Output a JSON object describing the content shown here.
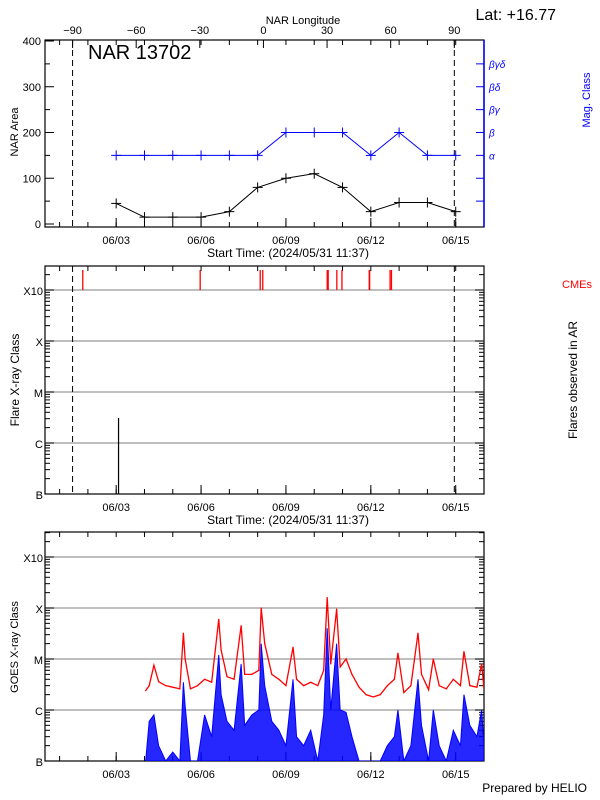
{
  "colors": {
    "area": "#000000",
    "mag_class": "#0000ff",
    "cme": "#ff0000",
    "goes_long": "#ff0000",
    "goes_short": "#0000ff",
    "grid": "#999999"
  },
  "header": {
    "lat_label": "Lat: +16.77",
    "top_axis_title": "NAR Longitude",
    "region_label": "NAR 13702"
  },
  "footer": {
    "credit": "Prepared by HELIO"
  },
  "chart_data": [
    {
      "type": "line",
      "panel": "nar",
      "xlabel": "Start Time: (2024/05/31 11:37)",
      "xlim": [
        "2024-05-31T11:37",
        "2024-06-16T00:00"
      ],
      "x_tick_labels": [
        "06/03",
        "06/06",
        "06/09",
        "06/12",
        "06/15"
      ],
      "x_tick_dates": [
        "2024-06-03",
        "2024-06-06",
        "2024-06-09",
        "2024-06-12",
        "2024-06-15"
      ],
      "top_axis": {
        "label": "NAR Longitude",
        "lim": [
          -103,
          104
        ],
        "ticks": [
          -90,
          -60,
          -30,
          0,
          30,
          60,
          90
        ],
        "dashed_lines": [
          -90,
          90
        ]
      },
      "ylabel": "NAR Area",
      "ylim": [
        0,
        400
      ],
      "y_ticks": [
        0,
        100,
        200,
        300,
        400
      ],
      "y2label": "Mag. Class",
      "y2_ticks": [
        {
          "value": 50,
          "label": ""
        },
        {
          "value": 100,
          "label": ""
        },
        {
          "value": 150,
          "label": "α"
        },
        {
          "value": 200,
          "label": "β"
        },
        {
          "value": 250,
          "label": "βγ"
        },
        {
          "value": 300,
          "label": "βδ"
        },
        {
          "value": 350,
          "label": "βγδ"
        }
      ],
      "x": [
        "2024-06-03",
        "2024-06-04",
        "2024-06-05",
        "2024-06-06",
        "2024-06-07",
        "2024-06-08",
        "2024-06-09",
        "2024-06-10",
        "2024-06-11",
        "2024-06-12",
        "2024-06-13",
        "2024-06-14",
        "2024-06-15"
      ],
      "series": [
        {
          "name": "NAR Area",
          "values": [
            45,
            15,
            15,
            15,
            27,
            80,
            100,
            110,
            80,
            27,
            47,
            47,
            27
          ]
        },
        {
          "name": "Mag. Class",
          "values": [
            "α",
            "α",
            "α",
            "α",
            "α",
            "α",
            "β",
            "β",
            "β",
            "α",
            "β",
            "α",
            "α"
          ]
        }
      ]
    },
    {
      "type": "bar",
      "panel": "flares",
      "xlabel": "Start Time: (2024/05/31 11:37)",
      "ylabel": "Flare X-ray Class",
      "y2label": "Flares observed in AR",
      "cme_label": "CMEs",
      "yscale": "log",
      "ylim": [
        1e-07,
        0.0028
      ],
      "y_ticks": [
        {
          "value": 1e-07,
          "label": "B"
        },
        {
          "value": 1e-06,
          "label": "C"
        },
        {
          "value": 1e-05,
          "label": "M"
        },
        {
          "value": 0.0001,
          "label": "X"
        },
        {
          "value": 0.001,
          "label": "X10"
        }
      ],
      "grid": true,
      "flares": [
        {
          "time": "2024-06-03T02:00",
          "peak": 3.1e-06
        }
      ],
      "cmes": [
        "2024-06-01T19:40",
        "2024-06-05T23:15",
        "2024-06-08T02:10",
        "2024-06-08T04:20",
        "2024-06-10T11:00",
        "2024-06-10T11:50",
        "2024-06-10T19:10",
        "2024-06-10T23:30",
        "2024-06-11T22:40",
        "2024-06-11T23:00",
        "2024-06-12T16:20",
        "2024-06-12T17:30"
      ],
      "dashed_lines_longitude": [
        -90,
        90
      ]
    },
    {
      "type": "line",
      "panel": "goes",
      "ylabel": "GOES X-ray Class",
      "yscale": "log",
      "ylim": [
        1e-07,
        0.0028
      ],
      "grid": true,
      "series_names": [
        "long",
        "short"
      ],
      "points": [
        [
          "2024-06-04T01:00",
          2.4e-06,
          5e-08
        ],
        [
          "2024-06-04T04:00",
          3e-06,
          6e-07
        ],
        [
          "2024-06-04T08:00",
          7.5e-06,
          8e-07
        ],
        [
          "2024-06-04T12:00",
          3.6e-06,
          2e-07
        ],
        [
          "2024-06-04T18:00",
          3e-06,
          5e-08
        ],
        [
          "2024-06-05T00:00",
          2.8e-06,
          1.5e-07
        ],
        [
          "2024-06-05T06:00",
          2.6e-06,
          5e-08
        ],
        [
          "2024-06-05T09:00",
          3.2e-05,
          3.5e-06
        ],
        [
          "2024-06-05T10:30",
          1e-05,
          1.2e-06
        ],
        [
          "2024-06-05T15:00",
          2.6e-06,
          1e-07
        ],
        [
          "2024-06-05T21:00",
          3e-06,
          5e-08
        ],
        [
          "2024-06-06T03:00",
          4e-06,
          8e-07
        ],
        [
          "2024-06-06T09:00",
          3.5e-06,
          3e-07
        ],
        [
          "2024-06-06T15:00",
          6e-05,
          1.2e-05
        ],
        [
          "2024-06-06T17:00",
          1.5e-05,
          2e-06
        ],
        [
          "2024-06-06T22:00",
          4.5e-06,
          6e-07
        ],
        [
          "2024-06-07T04:00",
          4e-06,
          4e-07
        ],
        [
          "2024-06-07T10:00",
          4.5e-05,
          8e-06
        ],
        [
          "2024-06-07T13:00",
          5e-06,
          5e-07
        ],
        [
          "2024-06-07T19:00",
          5e-06,
          8e-07
        ],
        [
          "2024-06-08T01:00",
          6e-06,
          1e-06
        ],
        [
          "2024-06-08T03:00",
          0.0001,
          2e-05
        ],
        [
          "2024-06-08T06:00",
          2e-05,
          3e-06
        ],
        [
          "2024-06-08T12:00",
          5e-06,
          6e-07
        ],
        [
          "2024-06-08T18:00",
          4e-06,
          4e-07
        ],
        [
          "2024-06-09T00:00",
          3e-06,
          2e-07
        ],
        [
          "2024-06-09T06:00",
          1.7e-05,
          4e-06
        ],
        [
          "2024-06-09T09:00",
          4e-06,
          3e-07
        ],
        [
          "2024-06-09T15:00",
          3e-06,
          2e-07
        ],
        [
          "2024-06-09T21:00",
          3.5e-06,
          4e-07
        ],
        [
          "2024-06-10T03:00",
          3e-06,
          1e-07
        ],
        [
          "2024-06-10T08:00",
          6e-06,
          8e-07
        ],
        [
          "2024-06-10T11:00",
          0.00016,
          4e-05
        ],
        [
          "2024-06-10T14:00",
          8e-06,
          1e-06
        ],
        [
          "2024-06-10T19:00",
          9.5e-05,
          2e-05
        ],
        [
          "2024-06-10T22:00",
          7e-06,
          1e-06
        ],
        [
          "2024-06-11T03:00",
          1e-05,
          9e-07
        ],
        [
          "2024-06-11T08:00",
          5e-06,
          3e-07
        ],
        [
          "2024-06-11T14:00",
          2.8e-06,
          5e-08
        ],
        [
          "2024-06-11T20:00",
          2e-06,
          5e-08
        ],
        [
          "2024-06-12T02:00",
          1.8e-06,
          5e-08
        ],
        [
          "2024-06-12T08:00",
          2e-06,
          5e-08
        ],
        [
          "2024-06-12T14:00",
          3e-06,
          2e-07
        ],
        [
          "2024-06-12T20:00",
          4e-06,
          3e-07
        ],
        [
          "2024-06-12T23:00",
          1.3e-05,
          1e-06
        ],
        [
          "2024-06-13T04:00",
          2.2e-06,
          5e-08
        ],
        [
          "2024-06-13T10:00",
          3e-06,
          2e-07
        ],
        [
          "2024-06-13T16:00",
          3.2e-05,
          4e-06
        ],
        [
          "2024-06-13T19:00",
          5e-06,
          5e-07
        ],
        [
          "2024-06-14T01:00",
          2.5e-06,
          1e-07
        ],
        [
          "2024-06-14T05:00",
          1e-05,
          1e-06
        ],
        [
          "2024-06-14T10:00",
          3e-06,
          2e-07
        ],
        [
          "2024-06-14T16:00",
          2.6e-06,
          1e-07
        ],
        [
          "2024-06-14T22:00",
          4e-06,
          4e-07
        ],
        [
          "2024-06-15T04:00",
          3e-06,
          2e-07
        ],
        [
          "2024-06-15T07:00",
          1.4e-05,
          2e-06
        ],
        [
          "2024-06-15T12:00",
          3e-06,
          5e-07
        ],
        [
          "2024-06-15T18:00",
          2.8e-06,
          3e-07
        ],
        [
          "2024-06-15T22:00",
          8e-06,
          1e-06
        ],
        [
          "2024-06-16T00:00",
          2.6e-06,
          2e-07
        ]
      ]
    }
  ]
}
